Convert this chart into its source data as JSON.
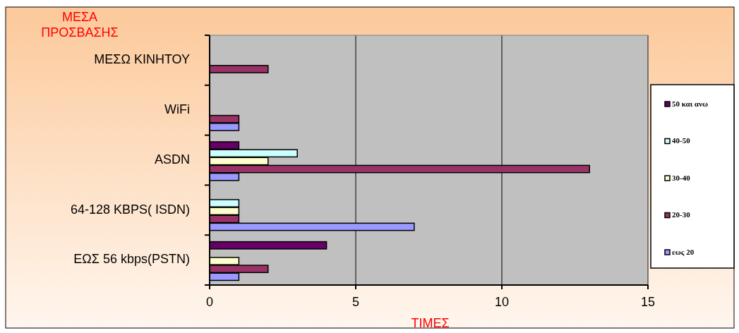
{
  "chart_data": {
    "type": "bar",
    "orientation": "horizontal",
    "xlabel": "ΤΙΜΕΣ",
    "ylabel": "ΜΕΣΑ ΠΡΟΣΒΑΣΗΣ",
    "categories": [
      "ΜΕΣΩ ΚΙΝΗΤΟΥ",
      "WiFi",
      "ASDN",
      "64-128 KBPS( ISDN)",
      "ΕΩΣ 56 kbps(PSTN)"
    ],
    "series": [
      {
        "name": "εως 20",
        "color": "#9999ff",
        "values": [
          null,
          1,
          1,
          7,
          1
        ]
      },
      {
        "name": "20-30",
        "color": "#993366",
        "values": [
          2,
          1,
          13,
          1,
          2
        ]
      },
      {
        "name": "30-40",
        "color": "#ffffcc",
        "values": [
          null,
          null,
          2,
          1,
          1
        ]
      },
      {
        "name": "40-50",
        "color": "#ccffff",
        "values": [
          null,
          null,
          3,
          1,
          null
        ]
      },
      {
        "name": "50 και ανω",
        "color": "#660066",
        "values": [
          null,
          null,
          1,
          null,
          4
        ]
      }
    ],
    "xlim": [
      0,
      15
    ],
    "xticks": [
      0,
      5,
      10,
      15
    ],
    "grid": "x",
    "legend": "right"
  }
}
